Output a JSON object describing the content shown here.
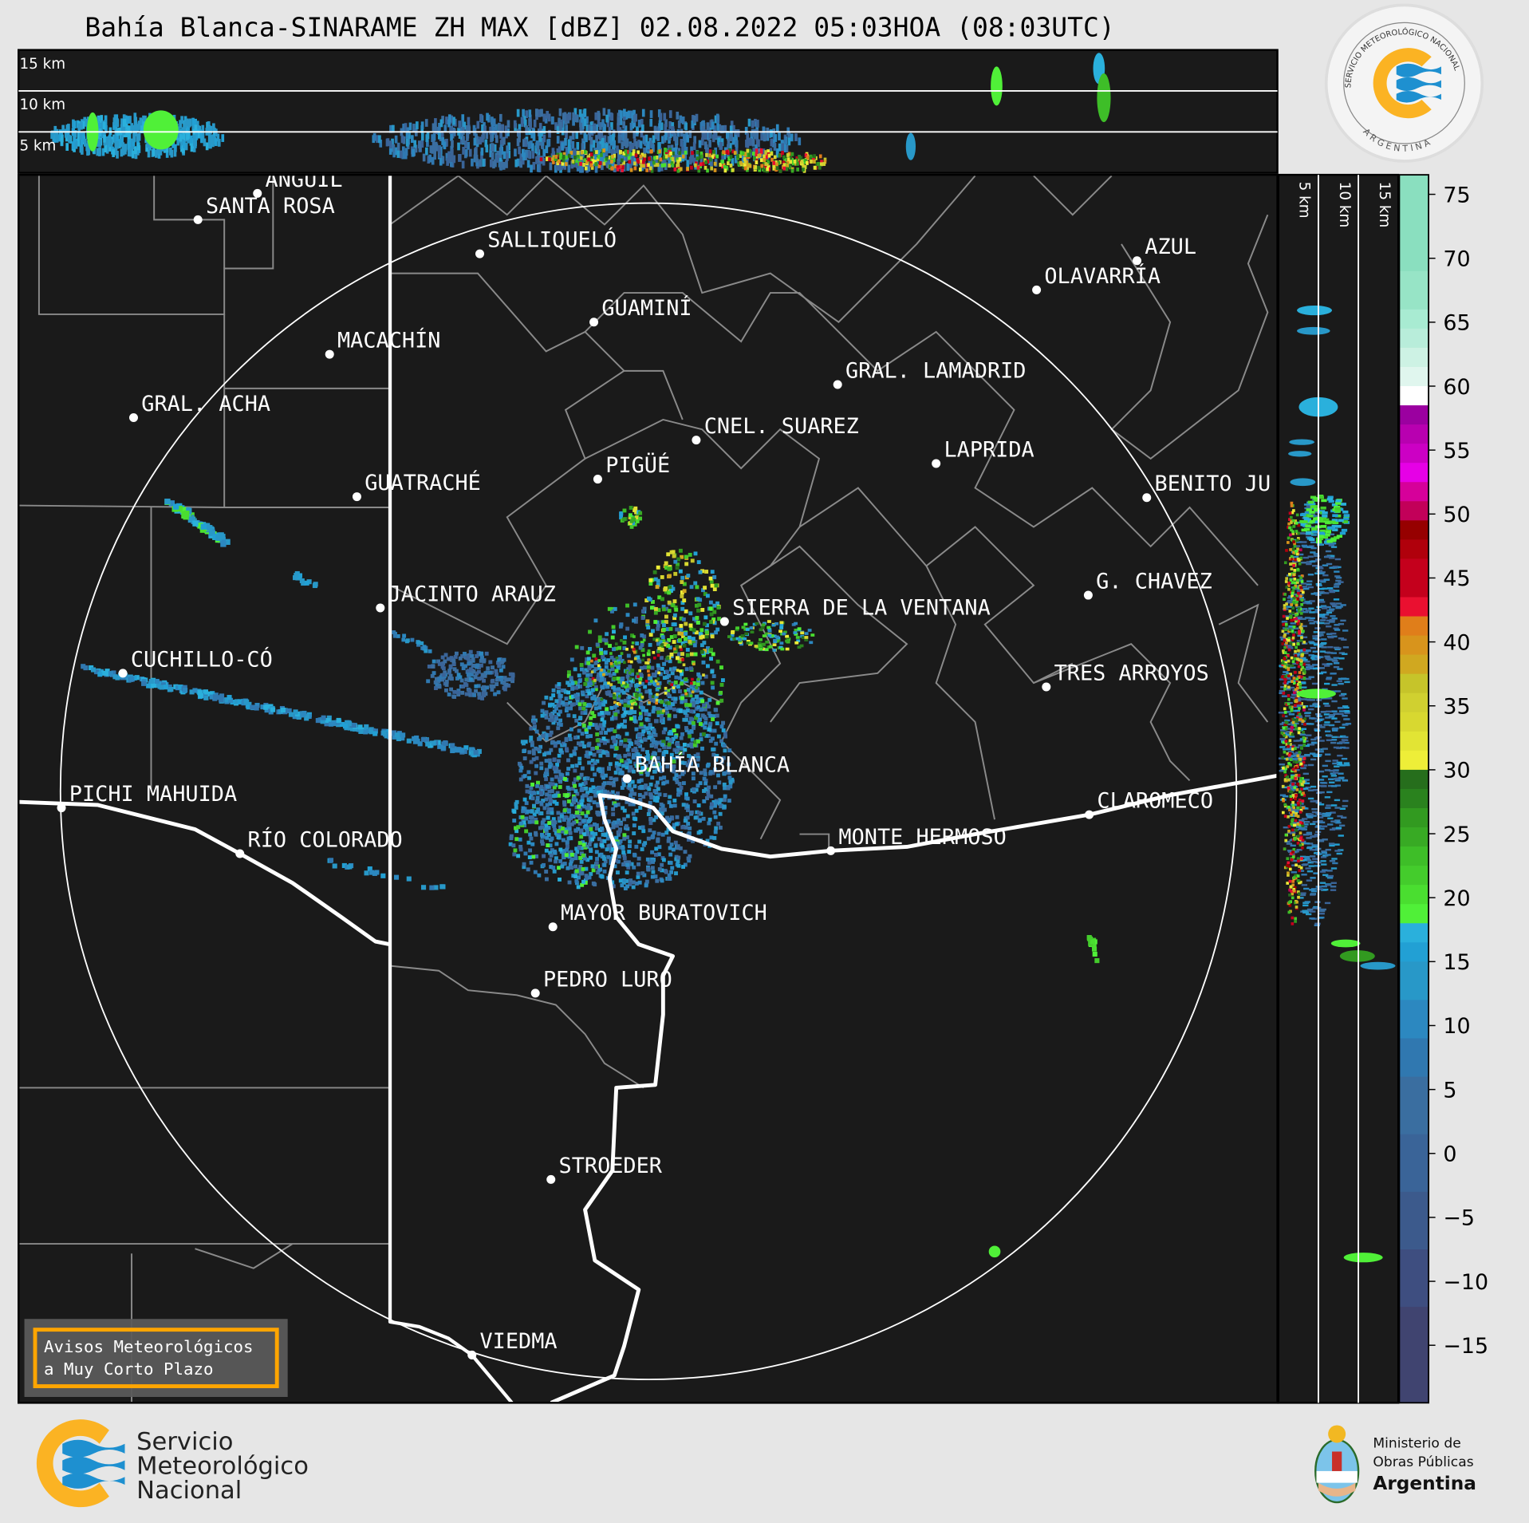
{
  "title": "Bahía Blanca-SINARAME ZH MAX [dBZ] 02.08.2022 05:03HOA (08:03UTC)",
  "top_panel": {
    "height_labels": [
      "15 km",
      "10 km",
      "5 km"
    ]
  },
  "side_panel": {
    "height_labels": [
      "5 km",
      "10 km",
      "15 km"
    ]
  },
  "colorbar": {
    "range": [
      -19.5,
      76.5
    ],
    "ticks": [
      "75",
      "70",
      "65",
      "60",
      "55",
      "50",
      "45",
      "40",
      "35",
      "30",
      "25",
      "20",
      "15",
      "10",
      "5",
      "0",
      "−5",
      "−10",
      "−15"
    ],
    "tick_values": [
      75,
      70,
      65,
      60,
      55,
      50,
      45,
      40,
      35,
      30,
      25,
      20,
      15,
      10,
      5,
      0,
      -5,
      -10,
      -15
    ],
    "segments": [
      [
        69,
        76.5,
        "#8adfbf"
      ],
      [
        66,
        69,
        "#97e4c6"
      ],
      [
        64.5,
        66,
        "#a8ebd2"
      ],
      [
        63,
        64.5,
        "#b8edda"
      ],
      [
        61.5,
        63,
        "#cdf2e4"
      ],
      [
        60,
        61.5,
        "#e0f6ee"
      ],
      [
        58.5,
        60,
        "#ffffff"
      ],
      [
        57,
        58.5,
        "#9b00a0"
      ],
      [
        55.5,
        57,
        "#b800b0"
      ],
      [
        54,
        55.5,
        "#cc00c4"
      ],
      [
        52.5,
        54,
        "#e600e6"
      ],
      [
        51,
        52.5,
        "#d6009a"
      ],
      [
        49.5,
        51,
        "#c20059"
      ],
      [
        48,
        49.5,
        "#960000"
      ],
      [
        46.5,
        48,
        "#b0000c"
      ],
      [
        43.5,
        46.5,
        "#c4001c"
      ],
      [
        42,
        43.5,
        "#ea1030"
      ],
      [
        40.5,
        42,
        "#e07e1a"
      ],
      [
        39,
        40.5,
        "#d8941c"
      ],
      [
        37.5,
        39,
        "#d0a820"
      ],
      [
        36,
        37.5,
        "#c6c42a"
      ],
      [
        34.5,
        36,
        "#d0d030"
      ],
      [
        33,
        34.5,
        "#d8d830"
      ],
      [
        31.5,
        33,
        "#e2e434"
      ],
      [
        30,
        31.5,
        "#eeee38"
      ],
      [
        28.5,
        30,
        "#266e1c"
      ],
      [
        27,
        28.5,
        "#2a821e"
      ],
      [
        25.5,
        27,
        "#329a20"
      ],
      [
        24,
        25.5,
        "#38aa24"
      ],
      [
        22.5,
        24,
        "#3ebe28"
      ],
      [
        21,
        22.5,
        "#44cc2c"
      ],
      [
        19.5,
        21,
        "#4ade30"
      ],
      [
        18,
        19.5,
        "#50f038"
      ],
      [
        16.5,
        18,
        "#2ab0dc"
      ],
      [
        15,
        16.5,
        "#22a0d4"
      ],
      [
        12,
        15,
        "#2898c8"
      ],
      [
        9,
        12,
        "#2c88c0"
      ],
      [
        6,
        9,
        "#3078b0"
      ],
      [
        1.5,
        6,
        "#3a6ea0"
      ],
      [
        -3,
        1.5,
        "#3a6498"
      ],
      [
        -7.5,
        -3,
        "#3c5a8c"
      ],
      [
        -12,
        -7.5,
        "#3e4e80"
      ],
      [
        -19.5,
        -12,
        "#404470"
      ]
    ]
  },
  "cities": [
    "ANGUIL",
    "SANTA ROSA",
    "SALLIQUELÓ",
    "GUAMINÍ",
    "MACACHÍN",
    "GRAL. ACHA",
    "OLAVARRÍA",
    "AZUL",
    "GRAL. LAMADRID",
    "CNEL. SUAREZ",
    "LAPRIDA",
    "PIGÜÉ",
    "GUATRACHÉ",
    "BENITO JU",
    "G. CHAVEZ",
    "JACINTO ARAUZ",
    "SIERRA DE LA VENTANA",
    "CUCHILLO-CÓ",
    "TRES ARROYOS",
    "BAHÍA BLANCA",
    "PICHI MAHUIDA",
    "CLAROMECO",
    "RÍO COLORADO",
    "MONTE HERMOSO",
    "MAYOR BURATOVICH",
    "PEDRO LURO",
    "STROEDER",
    "VIEDMA"
  ],
  "warning_box": {
    "line1": "Avisos Meteorológicos",
    "line2": "a Muy Corto Plazo"
  },
  "logos": {
    "seal_text": "SERVICIO METEOROLÓGICO NACIONAL",
    "seal_country": "ARGENTINA",
    "smn": [
      "Servicio",
      "Meteorológico",
      "Nacional"
    ],
    "ministry": [
      "Ministerio de",
      "Obras Públicas",
      "Argentina"
    ],
    "colors": {
      "smn_yellow": "#fbb323",
      "smn_blue": "#1e90d0"
    }
  }
}
